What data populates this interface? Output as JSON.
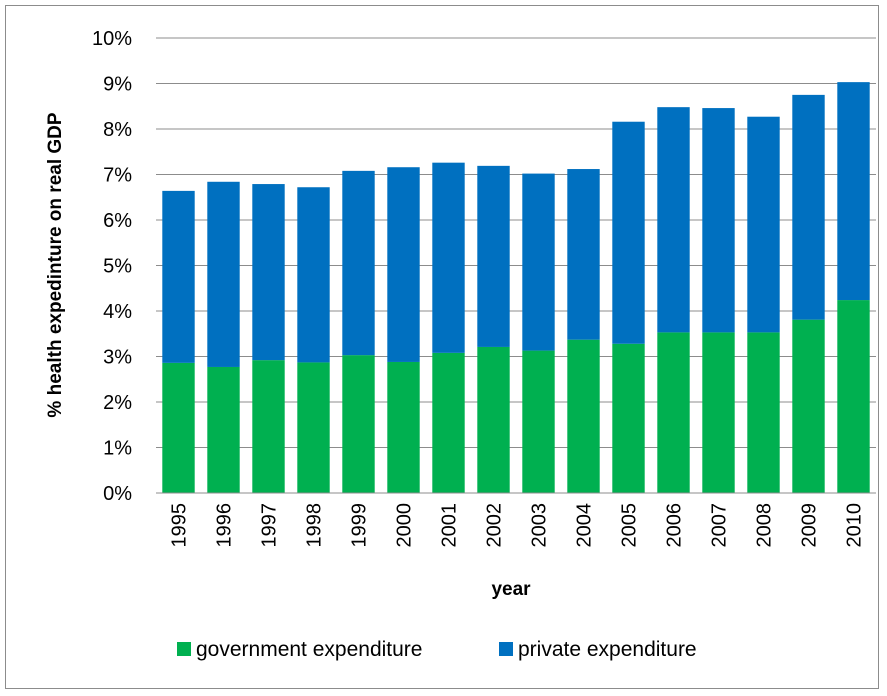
{
  "chart_data": {
    "type": "bar",
    "stacked": true,
    "title": "",
    "xlabel": "year",
    "ylabel": "% health expedinture on real GDP",
    "ylim": [
      0,
      10
    ],
    "y_tick_values": [
      0,
      1,
      2,
      3,
      4,
      5,
      6,
      7,
      8,
      9,
      10
    ],
    "y_tick_labels": [
      "0%",
      "1%",
      "2%",
      "3%",
      "4%",
      "5%",
      "6%",
      "7%",
      "8%",
      "9%",
      "10%"
    ],
    "gridlines": true,
    "legend_position": "bottom",
    "categories": [
      "1995",
      "1996",
      "1997",
      "1998",
      "1999",
      "2000",
      "2001",
      "2002",
      "2003",
      "2004",
      "2005",
      "2006",
      "2007",
      "2008",
      "2009",
      "2010"
    ],
    "series": [
      {
        "name": "government expenditure",
        "color": "#00B050",
        "values": [
          2.86,
          2.77,
          2.92,
          2.87,
          3.03,
          2.88,
          3.08,
          3.21,
          3.13,
          3.37,
          3.28,
          3.53,
          3.53,
          3.53,
          3.81,
          4.24
        ]
      },
      {
        "name": "private expenditure",
        "color": "#0070C0",
        "values": [
          3.78,
          4.07,
          3.87,
          3.85,
          4.05,
          4.28,
          4.18,
          3.98,
          3.89,
          3.75,
          4.88,
          4.95,
          4.93,
          4.74,
          4.94,
          4.79
        ]
      }
    ]
  }
}
